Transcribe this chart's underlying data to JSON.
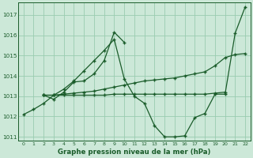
{
  "bg_color": "#cce8d8",
  "grid_color": "#99ccb0",
  "line_color": "#1a5c2a",
  "title": "Graphe pression niveau de la mer (hPa)",
  "xlim": [
    -0.5,
    22.5
  ],
  "ylim": [
    1010.8,
    1017.6
  ],
  "yticks": [
    1011,
    1012,
    1013,
    1014,
    1015,
    1016,
    1017
  ],
  "xticks": [
    0,
    1,
    2,
    3,
    4,
    5,
    6,
    7,
    8,
    9,
    10,
    11,
    12,
    13,
    14,
    15,
    16,
    17,
    18,
    19,
    20,
    21,
    22
  ],
  "s1_x": [
    0,
    1,
    2,
    3,
    4,
    5,
    6,
    7,
    8,
    9,
    10,
    11,
    12,
    13,
    14,
    15,
    16,
    17,
    18,
    19,
    20,
    21,
    22
  ],
  "s1_y": [
    1012.1,
    1012.35,
    1012.65,
    1013.05,
    1013.35,
    1013.75,
    1014.25,
    1014.75,
    1015.25,
    1015.8,
    1013.85,
    1013.0,
    1012.65,
    1011.55,
    1011.0,
    1011.0,
    1011.05,
    1011.95,
    1012.15,
    1013.1,
    1013.1,
    1016.1,
    1017.4
  ],
  "s2_x": [
    2,
    3,
    4,
    5,
    6,
    7,
    8,
    9,
    10
  ],
  "s2_y": [
    1013.05,
    1012.85,
    1013.2,
    1013.7,
    1013.75,
    1014.1,
    1014.75,
    1016.15,
    1015.65
  ],
  "s3_x": [
    2,
    3,
    4,
    5,
    6,
    7,
    8,
    9,
    10,
    11,
    12,
    13,
    14,
    15,
    16,
    17,
    18,
    19,
    20,
    21,
    22
  ],
  "s3_y": [
    1013.05,
    1013.05,
    1013.1,
    1013.15,
    1013.2,
    1013.25,
    1013.35,
    1013.45,
    1013.55,
    1013.65,
    1013.75,
    1013.8,
    1013.85,
    1013.9,
    1014.0,
    1014.1,
    1014.2,
    1014.5,
    1014.9,
    1015.05,
    1015.1
  ],
  "s4_x": [
    2,
    3,
    4,
    5,
    6,
    7,
    8,
    9,
    10,
    11,
    12,
    13,
    14,
    15,
    16,
    17,
    18,
    19,
    20
  ],
  "s4_y": [
    1013.05,
    1013.05,
    1013.05,
    1013.05,
    1013.05,
    1013.05,
    1013.05,
    1013.1,
    1013.1,
    1013.1,
    1013.1,
    1013.1,
    1013.1,
    1013.1,
    1013.1,
    1013.1,
    1013.1,
    1013.15,
    1013.2
  ]
}
